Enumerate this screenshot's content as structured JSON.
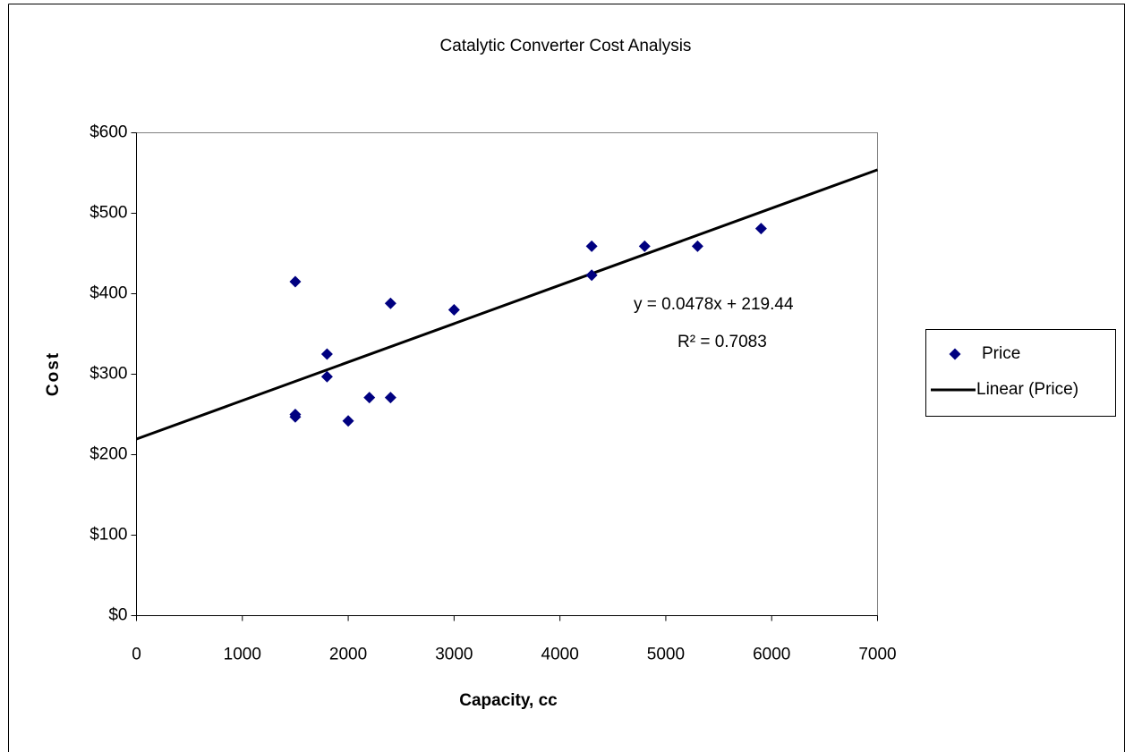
{
  "chart_data": {
    "type": "scatter",
    "title": "Catalytic Converter Cost Analysis",
    "x_label": "Capacity, cc",
    "y_label": "Cost",
    "series": [
      {
        "name": "Price",
        "color": "#000080",
        "x": [
          1500,
          1500,
          1500,
          1800,
          1800,
          2000,
          2200,
          2400,
          2400,
          3000,
          4300,
          4300,
          4800,
          5300,
          5900
        ],
        "values": [
          415,
          250,
          247,
          325,
          297,
          242,
          271,
          388,
          271,
          380,
          459,
          423,
          459,
          459,
          481
        ]
      }
    ],
    "trendline": {
      "name": "Linear (Price)",
      "color": "#000000",
      "slope": 0.0478,
      "intercept": 219.44,
      "equation_label": "y = 0.0478x + 219.44",
      "r2_label": "R² = 0.7083"
    },
    "xlim": [
      0,
      7000
    ],
    "xticks": [
      0,
      1000,
      2000,
      3000,
      4000,
      5000,
      6000,
      7000
    ],
    "ylim": [
      0,
      600
    ],
    "yticks": [
      {
        "value": 0,
        "label": "$0"
      },
      {
        "value": 100,
        "label": "$100"
      },
      {
        "value": 200,
        "label": "$200"
      },
      {
        "value": 300,
        "label": "$300"
      },
      {
        "value": 400,
        "label": "$400"
      },
      {
        "value": 500,
        "label": "$500"
      },
      {
        "value": 600,
        "label": "$600"
      }
    ],
    "grid": false,
    "legend": "right"
  }
}
